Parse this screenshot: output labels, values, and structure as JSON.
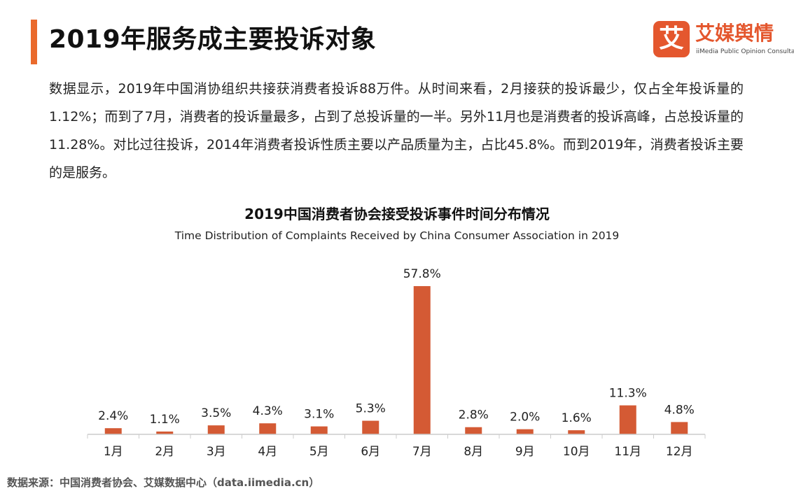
{
  "header": {
    "title": "2019年服务成主要投诉对象",
    "accent_color": "#ea6a2c"
  },
  "logo": {
    "mark": "艾",
    "name": "艾媒舆情",
    "subtitle": "iiMedia Public Opinion Consultation",
    "color": "#e4572e"
  },
  "intro": "数据显示，2019年中国消协组织共接获消费者投诉88万件。从时间来看，2月接获的投诉最少，仅占全年投诉量的1.12%；而到了7月，消费者的投诉量最多，占到了总投诉量的一半。另外11月也是消费者的投诉高峰，占总投诉量的11.28%。对比过往投诉，2014年消费者投诉性质主要以产品质量为主，占比45.8%。而到2019年，消费者投诉主要的是服务。",
  "source": "数据来源：中国消费者协会、艾媒数据中心（data.iimedia.cn）",
  "chart_data": {
    "type": "bar",
    "title": "2019中国消费者协会接受投诉事件时间分布情况",
    "subtitle": "Time Distribution of Complaints Received by China Consumer Association in 2019",
    "categories": [
      "1月",
      "2月",
      "3月",
      "4月",
      "5月",
      "6月",
      "7月",
      "8月",
      "9月",
      "10月",
      "11月",
      "12月"
    ],
    "values": [
      2.4,
      1.1,
      3.5,
      4.3,
      3.1,
      5.3,
      57.8,
      2.8,
      2.0,
      1.6,
      11.3,
      4.8
    ],
    "labels": [
      "2.4%",
      "1.1%",
      "3.5%",
      "4.3%",
      "3.1%",
      "5.3%",
      "57.8%",
      "2.8%",
      "2.0%",
      "1.6%",
      "11.3%",
      "4.8%"
    ],
    "unit": "%",
    "ylim": [
      0,
      60
    ],
    "grid": false,
    "bar_color": "#d45a34",
    "axis_color": "#cccccc"
  }
}
